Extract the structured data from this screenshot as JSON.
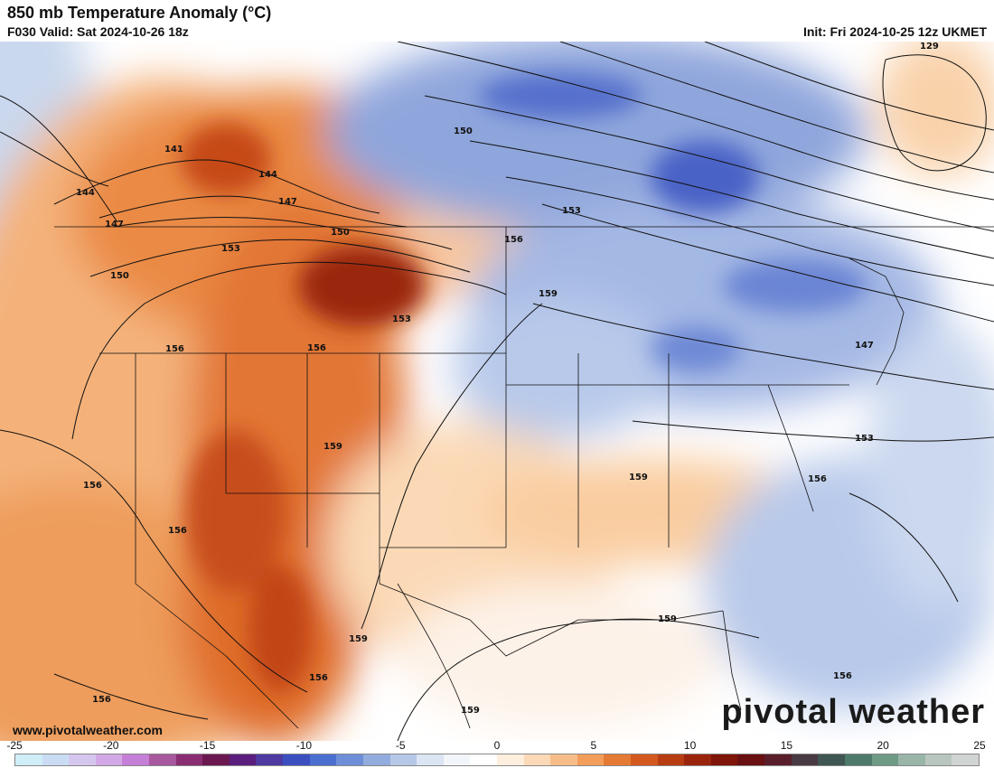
{
  "header": {
    "title": "850 mb Temperature Anomaly (°C)",
    "valid": "F030 Valid: Sat 2024-10-26 18z",
    "init": "Init: Fri 2024-10-25 12z UKMET"
  },
  "footer": {
    "url": "www.pivotalweather.com",
    "brand": "pivotal weather"
  },
  "colorbar": {
    "labels": [
      "-25",
      "-20",
      "-15",
      "-10",
      "-5",
      "0",
      "5",
      "10",
      "15",
      "20",
      "25"
    ],
    "colors": [
      "#cfeef8",
      "#c9dcf4",
      "#d5c6ee",
      "#d3a8e6",
      "#c57fd6",
      "#a8589e",
      "#8a2d72",
      "#6b1850",
      "#5b1e7e",
      "#4e3aa0",
      "#3b4fc0",
      "#4a6fd0",
      "#6e8fd8",
      "#93acde",
      "#b6c8e8",
      "#dbe5f3",
      "#f2f5fa",
      "#ffffff",
      "#fdeedd",
      "#fbd9b6",
      "#f7bd88",
      "#f29e5a",
      "#e57a35",
      "#d2581d",
      "#b83c12",
      "#9a250c",
      "#7e1508",
      "#6a0f12",
      "#5a1e2a",
      "#4a3a44",
      "#3f5652",
      "#4d7a6a",
      "#6e9a86",
      "#98b5a8",
      "#b9c6c0",
      "#d0d4d2"
    ]
  },
  "contour_labels": [
    "141",
    "144",
    "147",
    "150",
    "153",
    "156",
    "159",
    "129"
  ],
  "highlights": {
    "warm_core": "#9a250c",
    "warm": "#e57a35",
    "light_warm": "#fbd9b6",
    "cold_core": "#3b4fc0",
    "cold": "#6e8fd8",
    "light_cold": "#b6c8e8"
  }
}
